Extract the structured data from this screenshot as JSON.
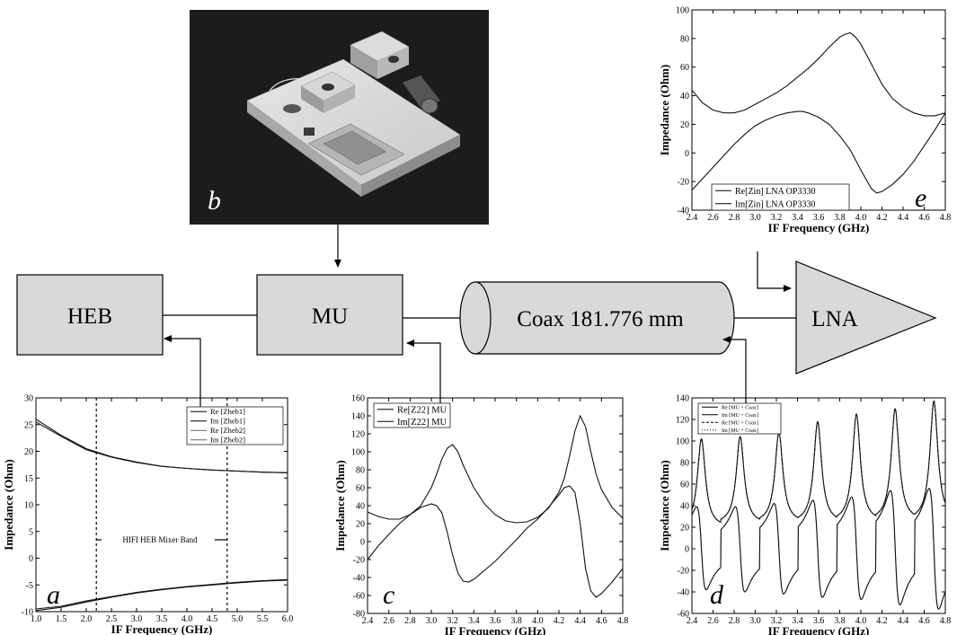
{
  "blocks": {
    "heb": "HEB",
    "mu": "MU",
    "coax": "Coax 181.776 mm",
    "lna": "LNA"
  },
  "photo": {
    "panel_label": "b"
  },
  "chart_data": [
    {
      "id": "a",
      "type": "line",
      "panel_label": "a",
      "xlabel": "IF Frequency (GHz)",
      "ylabel": "Impedance (Ohm)",
      "xlim": [
        1.0,
        6.0
      ],
      "ylim": [
        -10,
        30
      ],
      "xticks": [
        "1.0",
        "1.5",
        "2.0",
        "2.5",
        "3.0",
        "3.5",
        "4.0",
        "4.5",
        "5.0",
        "5.5",
        "6.0"
      ],
      "yticks": [
        "30",
        "25",
        "20",
        "15",
        "10",
        "5",
        "0",
        "-5",
        "-10"
      ],
      "legend": [
        "Re [Zheb1]",
        "Im [Zheb1]",
        "Re [Zheb2]",
        "Im [Zheb2]"
      ],
      "legend_position": "top-right",
      "annotation": "HIFI HEB Mixer Band",
      "band": [
        2.2,
        4.8
      ],
      "series": [
        {
          "name": "Re [Zheb1]",
          "x": [
            1.0,
            1.5,
            2.0,
            2.5,
            3.0,
            3.5,
            4.0,
            4.5,
            5.0,
            5.5,
            6.0
          ],
          "y": [
            26,
            23,
            20.5,
            19,
            18,
            17.2,
            16.8,
            16.5,
            16.3,
            16.1,
            16.0
          ]
        },
        {
          "name": "Im [Zheb1]",
          "x": [
            1.0,
            1.5,
            2.0,
            2.5,
            3.0,
            3.5,
            4.0,
            4.5,
            5.0,
            5.5,
            6.0
          ],
          "y": [
            -9.5,
            -9,
            -8,
            -7.2,
            -6.4,
            -5.8,
            -5.3,
            -4.9,
            -4.5,
            -4.2,
            -4.0
          ]
        },
        {
          "name": "Re [Zheb2]",
          "x": [
            1.0,
            1.5,
            2.0,
            2.5,
            3.0,
            3.5,
            4.0,
            4.5,
            5.0,
            5.5,
            6.0
          ],
          "y": [
            25.5,
            22.8,
            20.3,
            18.9,
            17.9,
            17.2,
            16.8,
            16.5,
            16.3,
            16.1,
            16.0
          ]
        },
        {
          "name": "Im [Zheb2]",
          "x": [
            1.0,
            1.5,
            2.0,
            2.5,
            3.0,
            3.5,
            4.0,
            4.5,
            5.0,
            5.5,
            6.0
          ],
          "y": [
            -9.8,
            -9.2,
            -8.2,
            -7.3,
            -6.5,
            -5.9,
            -5.4,
            -5.0,
            -4.6,
            -4.3,
            -4.1
          ]
        }
      ]
    },
    {
      "id": "c",
      "type": "line",
      "panel_label": "c",
      "xlabel": "IF Frequency (GHz)",
      "ylabel": "Impedance (Ohm)",
      "xlim": [
        2.4,
        4.8
      ],
      "ylim": [
        -80,
        160
      ],
      "xticks": [
        "2.4",
        "2.6",
        "2.8",
        "3.0",
        "3.2",
        "3.4",
        "3.6",
        "3.8",
        "4.0",
        "4.2",
        "4.4",
        "4.6",
        "4.8"
      ],
      "yticks": [
        "160",
        "140",
        "120",
        "100",
        "80",
        "60",
        "40",
        "20",
        "0",
        "-20",
        "-40",
        "-60",
        "-80"
      ],
      "legend": [
        "Re[Z22] MU",
        "Im[Z22] MU"
      ],
      "legend_position": "top-left",
      "series": [
        {
          "name": "Re[Z22] MU",
          "x": [
            2.4,
            2.5,
            2.6,
            2.7,
            2.8,
            2.9,
            3.0,
            3.05,
            3.1,
            3.15,
            3.2,
            3.25,
            3.3,
            3.4,
            3.5,
            3.6,
            3.7,
            3.8,
            3.9,
            4.0,
            4.1,
            4.2,
            4.25,
            4.3,
            4.35,
            4.4,
            4.45,
            4.5,
            4.55,
            4.6,
            4.7,
            4.8
          ],
          "y": [
            33,
            28,
            25,
            25,
            30,
            40,
            60,
            75,
            92,
            104,
            108,
            100,
            85,
            60,
            42,
            30,
            23,
            21,
            22,
            27,
            37,
            55,
            70,
            95,
            123,
            140,
            128,
            100,
            75,
            58,
            38,
            26
          ]
        },
        {
          "name": "Im[Z22] MU",
          "x": [
            2.4,
            2.5,
            2.6,
            2.7,
            2.8,
            2.9,
            3.0,
            3.05,
            3.1,
            3.15,
            3.2,
            3.25,
            3.3,
            3.35,
            3.4,
            3.5,
            3.6,
            3.7,
            3.8,
            3.9,
            4.0,
            4.1,
            4.2,
            4.25,
            4.3,
            4.35,
            4.4,
            4.45,
            4.5,
            4.55,
            4.6,
            4.7,
            4.8
          ],
          "y": [
            -20,
            -5,
            8,
            20,
            30,
            38,
            42,
            40,
            32,
            10,
            -15,
            -35,
            -44,
            -45,
            -42,
            -32,
            -22,
            -10,
            2,
            15,
            25,
            38,
            52,
            60,
            62,
            55,
            20,
            -30,
            -55,
            -62,
            -58,
            -45,
            -30
          ]
        }
      ]
    },
    {
      "id": "d",
      "type": "line",
      "panel_label": "d",
      "xlabel": "IF Frequency (GHz)",
      "ylabel": "Impedance (Ohm)",
      "xlim": [
        2.4,
        4.8
      ],
      "ylim": [
        -60,
        140
      ],
      "xticks": [
        "2.4",
        "2.6",
        "2.8",
        "3.0",
        "3.2",
        "3.4",
        "3.6",
        "3.8",
        "4.0",
        "4.2",
        "4.4",
        "4.6",
        "4.8"
      ],
      "yticks": [
        "140",
        "120",
        "100",
        "80",
        "60",
        "40",
        "20",
        "0",
        "-20",
        "-40",
        "-60"
      ],
      "legend": [
        "Re [MU + Coax]",
        "Im [MU + Coax]",
        "Re [MU + Coax]",
        "Im [MU + Coax]"
      ],
      "legend_position": "top-left",
      "resonance_period_ghz": 0.367,
      "first_peak_ghz": 2.49,
      "peaks_re": [
        102,
        104,
        108,
        118,
        125,
        130,
        137,
        134
      ],
      "peaks_im": [
        39,
        39,
        42,
        45,
        48,
        54,
        56,
        59
      ],
      "troughs_re": [
        20,
        23,
        24,
        24,
        25,
        26,
        26,
        27
      ],
      "troughs_im": [
        -38,
        -40,
        -42,
        -45,
        -47,
        -52,
        -56,
        -58
      ],
      "series": [
        {
          "name": "Re [MU + Coax]"
        },
        {
          "name": "Im [MU + Coax]"
        },
        {
          "name": "Re [MU + Coax]"
        },
        {
          "name": "Im [MU + Coax]"
        }
      ]
    },
    {
      "id": "e",
      "type": "line",
      "panel_label": "e",
      "xlabel": "IF Frequency (GHz)",
      "ylabel": "Impedance (Ohm)",
      "xlim": [
        2.4,
        4.8
      ],
      "ylim": [
        -40,
        100
      ],
      "xticks": [
        "2.4",
        "2.6",
        "2.8",
        "3.0",
        "3.2",
        "3.4",
        "3.6",
        "3.8",
        "4.0",
        "4.2",
        "4.4",
        "4.6",
        "4.8"
      ],
      "yticks": [
        "100",
        "80",
        "60",
        "40",
        "20",
        "0",
        "-20",
        "-40"
      ],
      "legend": [
        "Re[Zin] LNA OP3330",
        "Im[Zin] LNA OP3330"
      ],
      "legend_position": "bottom-left",
      "series": [
        {
          "name": "Re[Zin] LNA OP3330",
          "x": [
            2.4,
            2.5,
            2.6,
            2.7,
            2.8,
            2.9,
            3.0,
            3.1,
            3.2,
            3.3,
            3.4,
            3.5,
            3.6,
            3.7,
            3.8,
            3.85,
            3.9,
            3.95,
            4.0,
            4.1,
            4.2,
            4.3,
            4.4,
            4.5,
            4.6,
            4.7,
            4.8
          ],
          "y": [
            44,
            35,
            30,
            28,
            28,
            30,
            34,
            38,
            42,
            47,
            53,
            59,
            66,
            74,
            81,
            83,
            84,
            81,
            76,
            62,
            48,
            38,
            32,
            28,
            26,
            26,
            28
          ]
        },
        {
          "name": "Im[Zin] LNA OP3330",
          "x": [
            2.4,
            2.5,
            2.6,
            2.7,
            2.8,
            2.9,
            3.0,
            3.1,
            3.2,
            3.3,
            3.4,
            3.45,
            3.5,
            3.6,
            3.7,
            3.8,
            3.9,
            4.0,
            4.1,
            4.15,
            4.2,
            4.3,
            4.4,
            4.5,
            4.6,
            4.7,
            4.8
          ],
          "y": [
            -26,
            -18,
            -10,
            -2,
            6,
            13,
            19,
            23,
            26,
            28,
            29,
            29,
            28,
            25,
            20,
            12,
            2,
            -12,
            -25,
            -28,
            -27,
            -22,
            -15,
            -6,
            5,
            16,
            28
          ]
        }
      ]
    }
  ]
}
